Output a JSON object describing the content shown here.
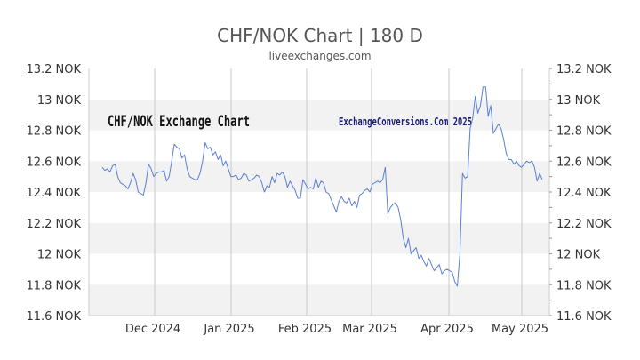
{
  "chart_data": {
    "type": "line",
    "title": "CHF/NOK Chart | 180 D",
    "subtitle": "liveexchanges.com",
    "watermarks": [
      "CHF/NOK Exchange Chart",
      "ExchangeConversions.Com 2025"
    ],
    "y_ticks": [
      11.6,
      11.8,
      12.0,
      12.2,
      12.4,
      12.6,
      12.8,
      13.0,
      13.2
    ],
    "y_tick_labels": [
      "11.6 NOK",
      "11.8 NOK",
      "12 NOK",
      "12.2 NOK",
      "12.4 NOK",
      "12.6 NOK",
      "12.8 NOK",
      "13 NOK",
      "13.2 NOK"
    ],
    "ylim": [
      11.6,
      13.2
    ],
    "x_ticks": [
      "Dec 2024",
      "Jan 2025",
      "Feb 2025",
      "Mar 2025",
      "Apr 2025",
      "May 2025"
    ],
    "grid": true,
    "line_color": "#5b7fd4",
    "series": [
      {
        "values": [
          12.56,
          12.54,
          12.55,
          12.53,
          12.57,
          12.58,
          12.5,
          12.46,
          12.45,
          12.44,
          12.42,
          12.46,
          12.52,
          12.48,
          12.4,
          12.39,
          12.38,
          12.46,
          12.58,
          12.55,
          12.5,
          12.52,
          12.53,
          12.53,
          12.54,
          12.47,
          12.5,
          12.6,
          12.71,
          12.69,
          12.68,
          12.62,
          12.64,
          12.55,
          12.5,
          12.49,
          12.48,
          12.48,
          12.52,
          12.6,
          12.72,
          12.68,
          12.69,
          12.64,
          12.66,
          12.61,
          12.64,
          12.57,
          12.6,
          12.55,
          12.5,
          12.5,
          12.51,
          12.48,
          12.49,
          12.52,
          12.51,
          12.47,
          12.48,
          12.49,
          12.51,
          12.5,
          12.46,
          12.4,
          12.44,
          12.43,
          12.5,
          12.46,
          12.52,
          12.51,
          12.53,
          12.5,
          12.43,
          12.47,
          12.44,
          12.41,
          12.36,
          12.36,
          12.48,
          12.45,
          12.42,
          12.43,
          12.42,
          12.49,
          12.43,
          12.47,
          12.46,
          12.4,
          12.39,
          12.35,
          12.31,
          12.27,
          12.34,
          12.37,
          12.34,
          12.33,
          12.36,
          12.31,
          12.34,
          12.3,
          12.38,
          12.39,
          12.41,
          12.42,
          12.4,
          12.45,
          12.46,
          12.47,
          12.46,
          12.48,
          12.56,
          12.26,
          12.3,
          12.32,
          12.33,
          12.3,
          12.22,
          12.1,
          12.04,
          12.1,
          12.0,
          12.02,
          12.04,
          11.97,
          11.99,
          11.95,
          11.92,
          11.97,
          11.93,
          11.89,
          11.91,
          11.93,
          11.87,
          11.89,
          11.9,
          11.89,
          11.88,
          11.82,
          11.79,
          12.0,
          12.52,
          12.49,
          12.5,
          12.81,
          12.88,
          13.02,
          12.91,
          12.96,
          13.08,
          13.08,
          12.89,
          12.96,
          12.78,
          12.81,
          12.84,
          12.81,
          12.74,
          12.65,
          12.61,
          12.61,
          12.58,
          12.6,
          12.57,
          12.56,
          12.58,
          12.6,
          12.59,
          12.6,
          12.56,
          12.47,
          12.52,
          12.48
        ]
      }
    ]
  }
}
